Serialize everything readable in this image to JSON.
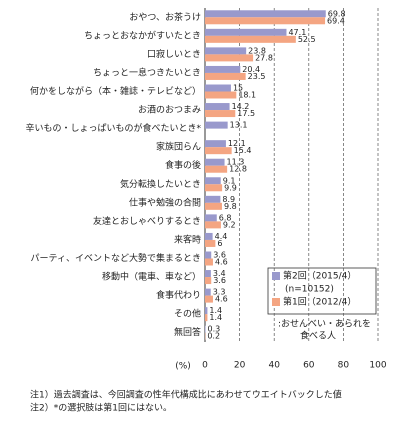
{
  "chart_data": {
    "type": "hbar",
    "categories": [
      "おやつ、お茶うけ",
      "ちょっとおなかがすいたとき",
      "口寂しいとき",
      "ちょっと一息つきたいとき",
      "何かをしながら（本・雑誌・テレビなど）",
      "お酒のおつまみ",
      "辛いもの・しょっぱいものが食べたいとき*",
      "家族団らん",
      "食事の後",
      "気分転換したいとき",
      "仕事や勉強の合間",
      "友達とおしゃべりするとき",
      "来客時",
      "パーティ、イベントなど大勢で集まるとき",
      "移動中（電車、車など）",
      "食事代わり",
      "その他",
      "無回答"
    ],
    "series": [
      {
        "name": "第2回（2015/4）",
        "color": "#9999cc",
        "values": [
          69.8,
          47.1,
          23.8,
          20.4,
          15.0,
          14.2,
          13.1,
          12.1,
          11.3,
          9.1,
          8.9,
          6.8,
          4.4,
          3.6,
          3.4,
          3.3,
          1.4,
          0.3
        ]
      },
      {
        "name": "第1回（2012/4）",
        "color": "#f4a582",
        "values": [
          69.4,
          52.5,
          27.8,
          23.5,
          18.1,
          17.5,
          null,
          15.4,
          12.8,
          9.9,
          9.8,
          9.2,
          6.0,
          4.6,
          3.6,
          4.6,
          1.4,
          0.2
        ]
      }
    ],
    "legend_note": "(n=10152)",
    "legend": "lower right",
    "annotation": [
      ":おせんべい・あられを",
      "食べる人"
    ],
    "xlabel": "(%)",
    "xlim": [
      0,
      100
    ],
    "xticks": [
      0,
      20,
      40,
      60,
      80,
      100
    ],
    "grid": true,
    "footnotes": [
      "注1）過去調査は、今回調査の性年代構成比にあわせてウエイトバックした値",
      "注2）*の選択肢は第1回にはない。"
    ]
  }
}
